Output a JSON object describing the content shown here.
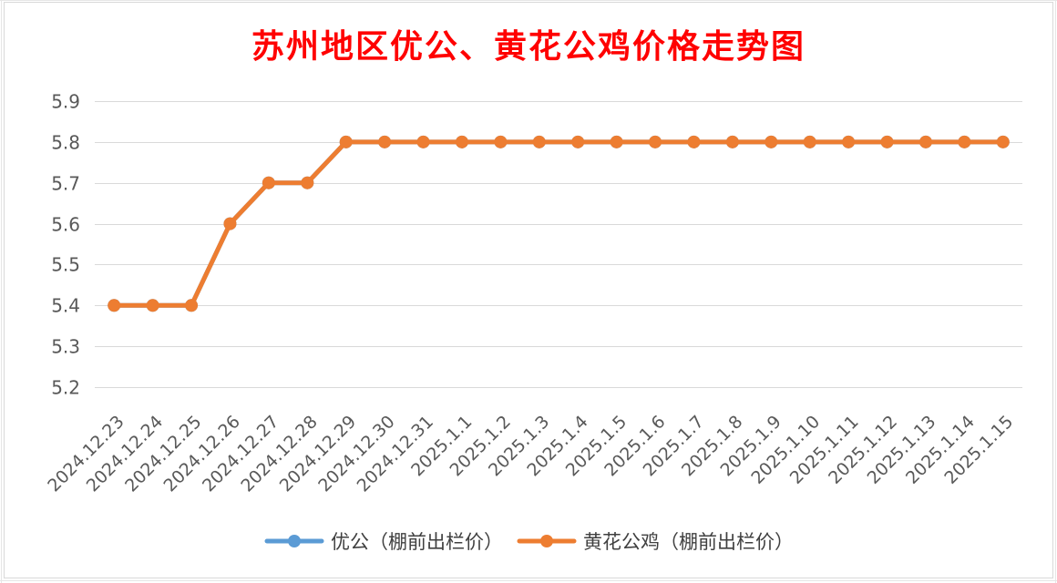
{
  "chart_data": {
    "type": "line",
    "title": "苏州地区优公、黄花公鸡价格走势图",
    "categories": [
      "2024.12.23",
      "2024.12.24",
      "2024.12.25",
      "2024.12.26",
      "2024.12.27",
      "2024.12.28",
      "2024.12.29",
      "2024.12.30",
      "2024.12.31",
      "2025.1.1",
      "2025.1.2",
      "2025.1.3",
      "2025.1.4",
      "2025.1.5",
      "2025.1.6",
      "2025.1.7",
      "2025.1.8",
      "2025.1.9",
      "2025.1.10",
      "2025.1.11",
      "2025.1.12",
      "2025.1.13",
      "2025.1.14",
      "2025.1.15"
    ],
    "series": [
      {
        "name": "优公（棚前出栏价）",
        "color": "#5b9bd5",
        "values": [
          5.4,
          5.4,
          5.4,
          5.6,
          5.7,
          5.7,
          5.8,
          5.8,
          5.8,
          5.8,
          5.8,
          5.8,
          5.8,
          5.8,
          5.8,
          5.8,
          5.8,
          5.8,
          5.8,
          5.8,
          5.8,
          5.8,
          5.8,
          5.8
        ]
      },
      {
        "name": "黄花公鸡（棚前出栏价）",
        "color": "#ed7d31",
        "values": [
          5.4,
          5.4,
          5.4,
          5.6,
          5.7,
          5.7,
          5.8,
          5.8,
          5.8,
          5.8,
          5.8,
          5.8,
          5.8,
          5.8,
          5.8,
          5.8,
          5.8,
          5.8,
          5.8,
          5.8,
          5.8,
          5.8,
          5.8,
          5.8
        ]
      }
    ],
    "ylim": [
      5.2,
      5.9
    ],
    "yticks": [
      "5.2",
      "5.3",
      "5.4",
      "5.5",
      "5.6",
      "5.7",
      "5.8",
      "5.9"
    ],
    "grid": true,
    "legend": "bottom"
  }
}
